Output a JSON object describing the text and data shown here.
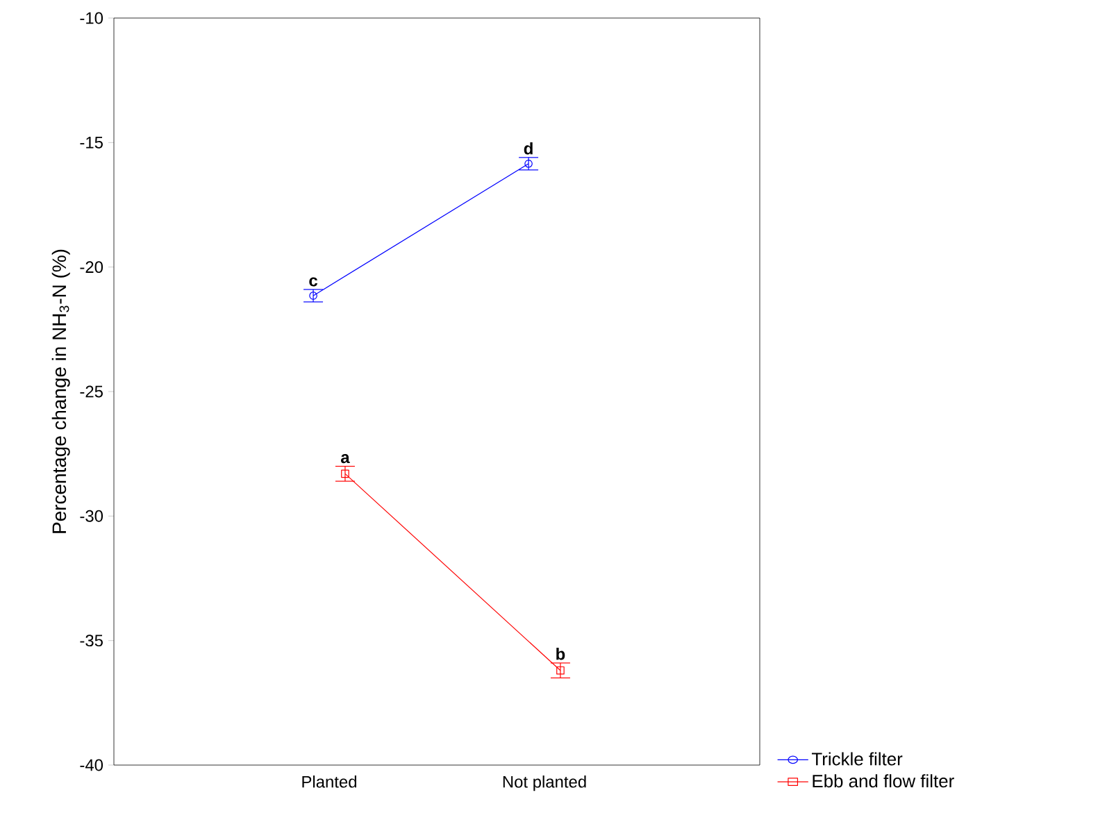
{
  "chart_data": {
    "type": "line",
    "ylabel": "Percentage change in NH$_{3}$-N (%)",
    "categories": [
      "Planted",
      "Not planted"
    ],
    "series": [
      {
        "name": "Trickle filter",
        "color": "#0000ff",
        "marker": "circle",
        "values": [
          -21.15,
          -15.85
        ],
        "errors": [
          0.25,
          0.25
        ]
      },
      {
        "name": "Ebb and flow filter",
        "color": "#ff0000",
        "marker": "square",
        "values": [
          -28.3,
          -36.2
        ],
        "errors": [
          0.3,
          0.3
        ]
      }
    ],
    "ylim": [
      -40,
      -10
    ],
    "yticks": [
      -40,
      -35,
      -30,
      -25,
      -20,
      -15,
      -10
    ],
    "grid": false,
    "legend": "bottom right",
    "annotations": [
      "c",
      "d",
      "a",
      "b"
    ]
  }
}
